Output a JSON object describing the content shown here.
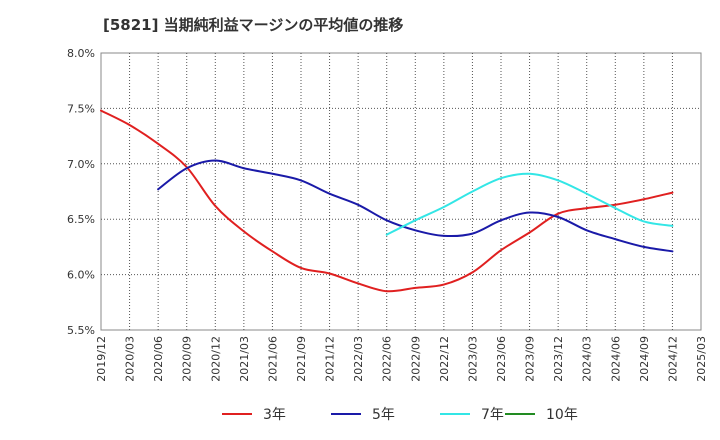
{
  "chart_data": {
    "type": "line",
    "title": "[5821]  当期純利益マージンの平均値の推移",
    "xlabel": "",
    "ylabel": "",
    "ylim": [
      5.5,
      8.0
    ],
    "y_ticks": [
      5.5,
      6.0,
      6.5,
      7.0,
      7.5,
      8.0
    ],
    "y_tick_labels": [
      "5.5%",
      "6.0%",
      "6.5%",
      "7.0%",
      "7.5%",
      "8.0%"
    ],
    "x_ticks": [
      "2019/12",
      "2020/03",
      "2020/06",
      "2020/09",
      "2020/12",
      "2021/03",
      "2021/06",
      "2021/09",
      "2021/12",
      "2022/03",
      "2022/06",
      "2022/09",
      "2022/12",
      "2023/03",
      "2023/06",
      "2023/09",
      "2023/12",
      "2024/03",
      "2024/06",
      "2024/09",
      "2024/12",
      "2025/03"
    ],
    "grid": true,
    "legend_position": "bottom",
    "series": [
      {
        "name": "3年",
        "color": "#e02020",
        "x": [
          "2019/12",
          "2020/03",
          "2020/06",
          "2020/09",
          "2020/12",
          "2021/03",
          "2021/06",
          "2021/09",
          "2021/12",
          "2022/03",
          "2022/06",
          "2022/09",
          "2022/12",
          "2023/03",
          "2023/06",
          "2023/09",
          "2023/12",
          "2024/03",
          "2024/06",
          "2024/09",
          "2024/12"
        ],
        "values": [
          7.48,
          7.35,
          7.18,
          6.97,
          6.62,
          6.39,
          6.21,
          6.06,
          6.01,
          5.92,
          5.85,
          5.88,
          5.91,
          6.02,
          6.22,
          6.38,
          6.55,
          6.6,
          6.63,
          6.68,
          6.74
        ]
      },
      {
        "name": "5年",
        "color": "#1a1aa8",
        "x": [
          "2020/06",
          "2020/09",
          "2020/12",
          "2021/03",
          "2021/06",
          "2021/09",
          "2021/12",
          "2022/03",
          "2022/06",
          "2022/09",
          "2022/12",
          "2023/03",
          "2023/06",
          "2023/09",
          "2023/12",
          "2024/03",
          "2024/06",
          "2024/09",
          "2024/12"
        ],
        "values": [
          6.77,
          6.96,
          7.03,
          6.96,
          6.91,
          6.85,
          6.73,
          6.63,
          6.49,
          6.4,
          6.35,
          6.37,
          6.49,
          6.56,
          6.52,
          6.4,
          6.32,
          6.25,
          6.21
        ]
      },
      {
        "name": "7年",
        "color": "#33e6e6",
        "x": [
          "2022/06",
          "2022/09",
          "2022/12",
          "2023/03",
          "2023/06",
          "2023/09",
          "2023/12",
          "2024/03",
          "2024/06",
          "2024/09",
          "2024/12"
        ],
        "values": [
          6.36,
          6.49,
          6.61,
          6.75,
          6.87,
          6.91,
          6.85,
          6.73,
          6.6,
          6.48,
          6.44
        ]
      },
      {
        "name": "10年",
        "color": "#228b22",
        "x": [],
        "values": []
      }
    ]
  }
}
